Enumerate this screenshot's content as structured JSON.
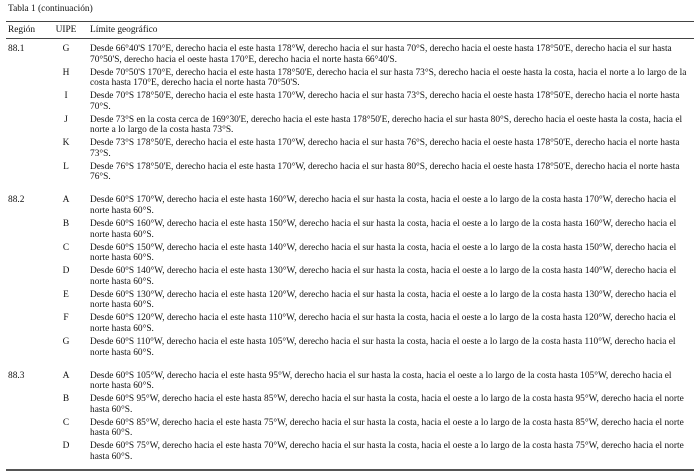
{
  "caption": "Tabla 1 (continuación)",
  "headers": {
    "region": "Región",
    "uipe": "UIPE",
    "limite": "Límite geográfico"
  },
  "groups": [
    {
      "region": "88.1",
      "rows": [
        {
          "uipe": "G",
          "text": "Desde 66°40'S 170°E, derecho hacia el este hasta 178°W, derecho hacia el sur hasta 70°S, derecho hacia el oeste hasta 178°50'E, derecho hacia el sur hasta 70°50'S, derecho hacia el oeste hasta 170°E, derecho hacia el norte hasta 66°40'S."
        },
        {
          "uipe": "H",
          "text": "Desde 70°50'S 170°E, derecho hacia el este hasta 178°50'E, derecho hacia el sur hasta 73°S, derecho hacia el oeste hasta la costa, hacia el norte a lo largo de la costa hasta 170°E, derecho hacia el norte hasta 70°50'S."
        },
        {
          "uipe": "I",
          "text": "Desde 70°S 178°50'E, derecho hacia el este hasta 170°W, derecho hacia el sur hasta 73°S, derecho hacia el oeste hasta 178°50'E, derecho hacia el norte hasta 70°S."
        },
        {
          "uipe": "J",
          "text": "Desde 73°S en la costa cerca de 169°30'E, derecho hacia el este hasta 178°50'E, derecho hacia el sur hasta 80°S, derecho hacia el oeste hasta la costa, hacia el norte a lo largo de la costa hasta 73°S."
        },
        {
          "uipe": "K",
          "text": "Desde 73°S 178°50'E, derecho hacia el este hasta 170°W, derecho hacia el sur hasta 76°S, derecho hacia el oeste hasta 178°50'E, derecho hacia el norte hasta 73°S."
        },
        {
          "uipe": "L",
          "text": "Desde 76°S 178°50'E, derecho hacia el este hasta 170°W, derecho hacia el sur hasta 80°S, derecho hacia el oeste hasta 178°50'E, derecho hacia el norte hasta 76°S."
        }
      ]
    },
    {
      "region": "88.2",
      "rows": [
        {
          "uipe": "A",
          "text": "Desde 60°S 170°W, derecho hacia el este hasta 160°W, derecho hacia el sur hasta la costa, hacia el oeste a lo largo de la costa hasta 170°W, derecho hacia el norte hasta 60°S."
        },
        {
          "uipe": "B",
          "text": "Desde 60°S 160°W, derecho hacia el este hasta 150°W, derecho hacia el sur hasta la costa, hacia el oeste a lo largo de la costa hasta 160°W, derecho hacia el norte hasta 60°S."
        },
        {
          "uipe": "C",
          "text": "Desde 60°S 150°W, derecho hacia el este hasta 140°W, derecho hacia el sur hasta la costa, hacia el oeste a lo largo de la costa hasta 150°W, derecho hacia el norte hasta 60°S."
        },
        {
          "uipe": "D",
          "text": "Desde 60°S 140°W, derecho hacia el este hasta 130°W, derecho hacia el sur hasta la costa, hacia el oeste a lo largo de la costa hasta 140°W, derecho hacia el norte hasta 60°S."
        },
        {
          "uipe": "E",
          "text": "Desde 60°S 130°W, derecho hacia el este hasta 120°W, derecho hacia el sur hasta la costa, hacia el oeste a lo largo de la costa hasta 130°W, derecho hacia el norte hasta 60°S."
        },
        {
          "uipe": "F",
          "text": "Desde 60°S 120°W, derecho hacia el este hasta 110°W, derecho hacia el sur hasta la costa, hacia el oeste a lo largo de la costa hasta 120°W, derecho hacia el norte hasta 60°S."
        },
        {
          "uipe": "G",
          "text": "Desde 60°S 110°W, derecho hacia el este hasta 105°W, derecho hacia el sur hasta la costa, hacia el oeste a lo largo de la costa hasta 110°W, derecho hacia el norte hasta 60°S."
        }
      ]
    },
    {
      "region": "88.3",
      "rows": [
        {
          "uipe": "A",
          "text": "Desde 60°S 105°W, derecho hacia el este hasta 95°W, derecho hacia el sur hasta la costa, hacia el oeste a lo largo de la costa hasta 105°W, derecho hacia el norte hasta 60°S."
        },
        {
          "uipe": "B",
          "text": "Desde 60°S 95°W, derecho hacia el este hasta 85°W, derecho hacia el sur hasta la costa, hacia el oeste a lo largo de la costa hasta 95°W, derecho hacia el norte hasta 60°S."
        },
        {
          "uipe": "C",
          "text": "Desde 60°S 85°W, derecho hacia el este hasta 75°W, derecho hacia el sur hasta la costa, hacia el oeste a lo largo de la costa hasta 85°W, derecho hacia el norte hasta 60°S."
        },
        {
          "uipe": "D",
          "text": "Desde 60°S 75°W, derecho hacia el este hasta 70°W, derecho hacia el sur hasta la costa, hacia el oeste a lo largo de la costa hasta 75°W, derecho hacia el norte hasta 60°S."
        }
      ]
    }
  ]
}
